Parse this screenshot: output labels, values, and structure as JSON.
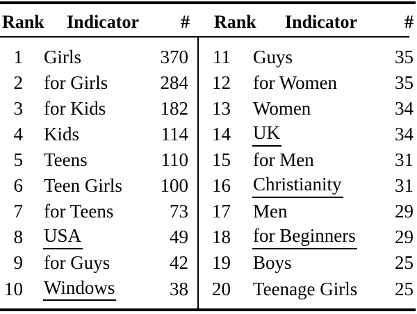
{
  "colors": {
    "text": "#000000",
    "background": "#ffffff",
    "rule": "#000000"
  },
  "table": {
    "headers": {
      "rank": "Rank",
      "indicator": "Indicator",
      "count": "#"
    },
    "left_rows": [
      {
        "rank": "1",
        "indicator": "Girls",
        "count": "370",
        "underline": false
      },
      {
        "rank": "2",
        "indicator": "for Girls",
        "count": "284",
        "underline": false
      },
      {
        "rank": "3",
        "indicator": "for Kids",
        "count": "182",
        "underline": false
      },
      {
        "rank": "4",
        "indicator": "Kids",
        "count": "114",
        "underline": false
      },
      {
        "rank": "5",
        "indicator": "Teens",
        "count": "110",
        "underline": false
      },
      {
        "rank": "6",
        "indicator": "Teen Girls",
        "count": "100",
        "underline": false
      },
      {
        "rank": "7",
        "indicator": "for Teens",
        "count": "73",
        "underline": false
      },
      {
        "rank": "8",
        "indicator": "USA",
        "count": "49",
        "underline": true
      },
      {
        "rank": "9",
        "indicator": "for Guys",
        "count": "42",
        "underline": false
      },
      {
        "rank": "10",
        "indicator": "Windows",
        "count": "38",
        "underline": true
      }
    ],
    "right_rows": [
      {
        "rank": "11",
        "indicator": "Guys",
        "count": "35",
        "underline": false
      },
      {
        "rank": "12",
        "indicator": "for Women",
        "count": "35",
        "underline": false
      },
      {
        "rank": "13",
        "indicator": "Women",
        "count": "34",
        "underline": false
      },
      {
        "rank": "14",
        "indicator": "UK",
        "count": "34",
        "underline": true
      },
      {
        "rank": "15",
        "indicator": "for Men",
        "count": "31",
        "underline": false
      },
      {
        "rank": "16",
        "indicator": "Christianity",
        "count": "31",
        "underline": true
      },
      {
        "rank": "17",
        "indicator": "Men",
        "count": "29",
        "underline": false
      },
      {
        "rank": "18",
        "indicator": "for Beginners",
        "count": "29",
        "underline": true
      },
      {
        "rank": "19",
        "indicator": "Boys",
        "count": "25",
        "underline": false
      },
      {
        "rank": "20",
        "indicator": "Teenage Girls",
        "count": "25",
        "underline": false
      }
    ]
  },
  "chart_data": {
    "type": "table",
    "columns": [
      "Rank",
      "Indicator",
      "#"
    ],
    "rows": [
      [
        1,
        "Girls",
        370
      ],
      [
        2,
        "for Girls",
        284
      ],
      [
        3,
        "for Kids",
        182
      ],
      [
        4,
        "Kids",
        114
      ],
      [
        5,
        "Teens",
        110
      ],
      [
        6,
        "Teen Girls",
        100
      ],
      [
        7,
        "for Teens",
        73
      ],
      [
        8,
        "USA",
        49
      ],
      [
        9,
        "for Guys",
        42
      ],
      [
        10,
        "Windows",
        38
      ],
      [
        11,
        "Guys",
        35
      ],
      [
        12,
        "for Women",
        35
      ],
      [
        13,
        "Women",
        34
      ],
      [
        14,
        "UK",
        34
      ],
      [
        15,
        "for Men",
        31
      ],
      [
        16,
        "Christianity",
        31
      ],
      [
        17,
        "Men",
        29
      ],
      [
        18,
        "for Beginners",
        29
      ],
      [
        19,
        "Boys",
        25
      ],
      [
        20,
        "Teenage Girls",
        25
      ]
    ],
    "underlined_indicators": [
      "USA",
      "Windows",
      "UK",
      "Christianity",
      "for Beginners"
    ]
  }
}
